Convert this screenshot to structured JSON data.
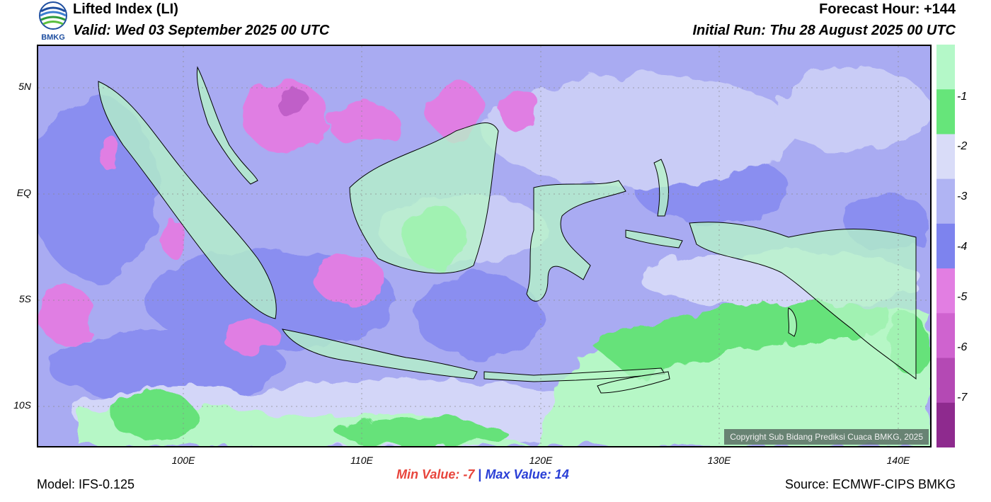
{
  "header": {
    "title": "Lifted Index (LI)",
    "valid": "Valid: Wed 03 September 2025 00 UTC",
    "forecast_hour": "Forecast Hour: +144",
    "initial_run": "Initial Run: Thu 28 August 2025 00 UTC",
    "logo_text": "BMKG"
  },
  "map": {
    "lat_labels": [
      "5N",
      "EQ",
      "5S",
      "10S"
    ],
    "lon_labels": [
      "100E",
      "110E",
      "120E",
      "130E",
      "140E"
    ],
    "copyright": "Copyright Sub Bidang Prediksi Cuaca BMKG, 2025"
  },
  "colorbar": {
    "labels": [
      "-1",
      "-2",
      "-3",
      "-4",
      "-5",
      "-6",
      "-7"
    ],
    "colors": [
      "#b4f8c8",
      "#66e57a",
      "#d9dcf8",
      "#b0b4f3",
      "#7d83ee",
      "#e27ee2",
      "#cf63cf",
      "#b449b4",
      "#8e2a8e"
    ]
  },
  "footer": {
    "model": "Model: IFS-0.125",
    "min_label": "Min Value:  -7",
    "separator": "|",
    "max_label": "Max Value:  14",
    "source": "Source: ECMWF-CIPS BMKG"
  }
}
